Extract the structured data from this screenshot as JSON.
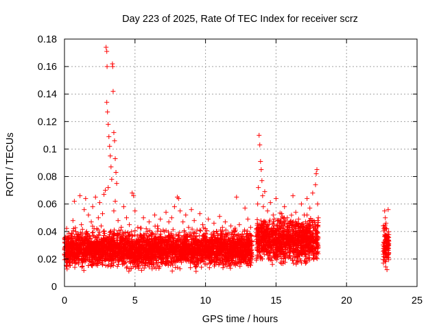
{
  "chart_data": {
    "type": "scatter",
    "title": "Day 223 of 2025, Rate Of TEC Index for receiver scrz",
    "xlabel": "GPS time / hours",
    "ylabel": "ROTI / TECUs",
    "xlim": [
      0,
      25
    ],
    "ylim": [
      0,
      0.18
    ],
    "xticks": [
      0,
      5,
      10,
      15,
      20,
      25
    ],
    "yticks": [
      0,
      0.02,
      0.04,
      0.06,
      0.08,
      0.1,
      0.12,
      0.14,
      0.16,
      0.18
    ],
    "xtick_labels": [
      "0",
      "5",
      "10",
      "15",
      "20",
      "25"
    ],
    "ytick_labels": [
      "0",
      "0.02",
      "0.04",
      "0.06",
      "0.08",
      "0.1",
      "0.12",
      "0.14",
      "0.16",
      "0.18"
    ],
    "grid": true,
    "marker": "+",
    "color": "#ff0000",
    "series": [
      {
        "name": "ROTI",
        "points": [
          [
            0.1,
            0.022
          ],
          [
            0.2,
            0.018
          ],
          [
            0.3,
            0.03
          ],
          [
            0.4,
            0.025
          ],
          [
            0.5,
            0.035
          ],
          [
            0.6,
            0.048
          ],
          [
            0.7,
            0.062
          ],
          [
            0.8,
            0.04
          ],
          [
            0.9,
            0.028
          ],
          [
            1.0,
            0.02
          ],
          [
            1.1,
            0.066
          ],
          [
            1.2,
            0.045
          ],
          [
            1.3,
            0.033
          ],
          [
            1.4,
            0.056
          ],
          [
            1.5,
            0.064
          ],
          [
            1.6,
            0.038
          ],
          [
            1.7,
            0.052
          ],
          [
            1.8,
            0.029
          ],
          [
            1.9,
            0.047
          ],
          [
            2.0,
            0.058
          ],
          [
            2.1,
            0.042
          ],
          [
            2.2,
            0.065
          ],
          [
            2.3,
            0.036
          ],
          [
            2.4,
            0.05
          ],
          [
            2.5,
            0.061
          ],
          [
            2.6,
            0.044
          ],
          [
            2.7,
            0.053
          ],
          [
            2.8,
            0.067
          ],
          [
            2.9,
            0.07
          ],
          [
            2.95,
            0.174
          ],
          [
            3.0,
            0.171
          ],
          [
            3.02,
            0.16
          ],
          [
            3.0,
            0.134
          ],
          [
            3.05,
            0.127
          ],
          [
            3.1,
            0.118
          ],
          [
            3.15,
            0.109
          ],
          [
            3.2,
            0.102
          ],
          [
            3.25,
            0.095
          ],
          [
            3.3,
            0.087
          ],
          [
            3.35,
            0.078
          ],
          [
            3.1,
            0.072
          ],
          [
            3.4,
            0.162
          ],
          [
            3.42,
            0.16
          ],
          [
            3.45,
            0.142
          ],
          [
            3.5,
            0.112
          ],
          [
            3.55,
            0.106
          ],
          [
            3.6,
            0.093
          ],
          [
            3.65,
            0.083
          ],
          [
            3.7,
            0.075
          ],
          [
            3.6,
            0.062
          ],
          [
            3.5,
            0.055
          ],
          [
            3.8,
            0.048
          ],
          [
            4.0,
            0.041
          ],
          [
            4.2,
            0.058
          ],
          [
            4.4,
            0.05
          ],
          [
            4.6,
            0.045
          ],
          [
            4.8,
            0.068
          ],
          [
            4.9,
            0.066
          ],
          [
            5.0,
            0.055
          ],
          [
            5.2,
            0.043
          ],
          [
            5.4,
            0.037
          ],
          [
            5.6,
            0.05
          ],
          [
            5.8,
            0.042
          ],
          [
            6.0,
            0.047
          ],
          [
            6.2,
            0.039
          ],
          [
            6.4,
            0.052
          ],
          [
            6.6,
            0.044
          ],
          [
            6.8,
            0.049
          ],
          [
            7.0,
            0.041
          ],
          [
            7.2,
            0.054
          ],
          [
            7.4,
            0.047
          ],
          [
            7.6,
            0.05
          ],
          [
            7.8,
            0.058
          ],
          [
            8.0,
            0.065
          ],
          [
            8.1,
            0.064
          ],
          [
            8.2,
            0.055
          ],
          [
            8.4,
            0.047
          ],
          [
            8.6,
            0.052
          ],
          [
            8.8,
            0.043
          ],
          [
            9.0,
            0.056
          ],
          [
            9.2,
            0.048
          ],
          [
            9.4,
            0.041
          ],
          [
            9.6,
            0.053
          ],
          [
            9.8,
            0.045
          ],
          [
            10.0,
            0.042
          ],
          [
            10.2,
            0.049
          ],
          [
            10.4,
            0.038
          ],
          [
            10.6,
            0.046
          ],
          [
            10.8,
            0.04
          ],
          [
            11.0,
            0.051
          ],
          [
            11.2,
            0.043
          ],
          [
            11.4,
            0.047
          ],
          [
            11.6,
            0.039
          ],
          [
            11.8,
            0.044
          ],
          [
            12.0,
            0.041
          ],
          [
            12.2,
            0.065
          ],
          [
            12.4,
            0.045
          ],
          [
            12.6,
            0.038
          ],
          [
            12.8,
            0.057
          ],
          [
            13.0,
            0.049
          ],
          [
            13.2,
            0.043
          ],
          [
            13.7,
            0.06
          ],
          [
            13.75,
            0.072
          ],
          [
            13.8,
            0.11
          ],
          [
            13.85,
            0.103
          ],
          [
            13.9,
            0.091
          ],
          [
            13.95,
            0.085
          ],
          [
            14.0,
            0.077
          ],
          [
            14.05,
            0.066
          ],
          [
            14.1,
            0.058
          ],
          [
            14.2,
            0.069
          ],
          [
            14.4,
            0.055
          ],
          [
            14.6,
            0.061
          ],
          [
            14.8,
            0.052
          ],
          [
            15.0,
            0.064
          ],
          [
            15.2,
            0.048
          ],
          [
            15.4,
            0.053
          ],
          [
            15.6,
            0.058
          ],
          [
            15.8,
            0.05
          ],
          [
            16.0,
            0.047
          ],
          [
            16.2,
            0.066
          ],
          [
            16.4,
            0.054
          ],
          [
            16.6,
            0.049
          ],
          [
            16.8,
            0.06
          ],
          [
            17.0,
            0.052
          ],
          [
            17.2,
            0.064
          ],
          [
            17.4,
            0.057
          ],
          [
            17.6,
            0.068
          ],
          [
            17.8,
            0.074
          ],
          [
            17.85,
            0.082
          ],
          [
            17.9,
            0.085
          ],
          [
            17.95,
            0.06
          ],
          [
            18.0,
            0.05
          ],
          [
            22.7,
            0.055
          ],
          [
            22.75,
            0.05
          ],
          [
            22.8,
            0.046
          ],
          [
            22.85,
            0.042
          ],
          [
            22.9,
            0.038
          ],
          [
            22.95,
            0.056
          ],
          [
            23.0,
            0.033
          ]
        ],
        "bands": [
          {
            "x": [
              0.0,
              13.3
            ],
            "ymin": 0.01,
            "ymax": 0.04
          },
          {
            "x": [
              13.6,
              18.0
            ],
            "ymin": 0.012,
            "ymax": 0.05
          },
          {
            "x": [
              22.6,
              23.0
            ],
            "ymin": 0.01,
            "ymax": 0.045
          }
        ]
      }
    ]
  }
}
